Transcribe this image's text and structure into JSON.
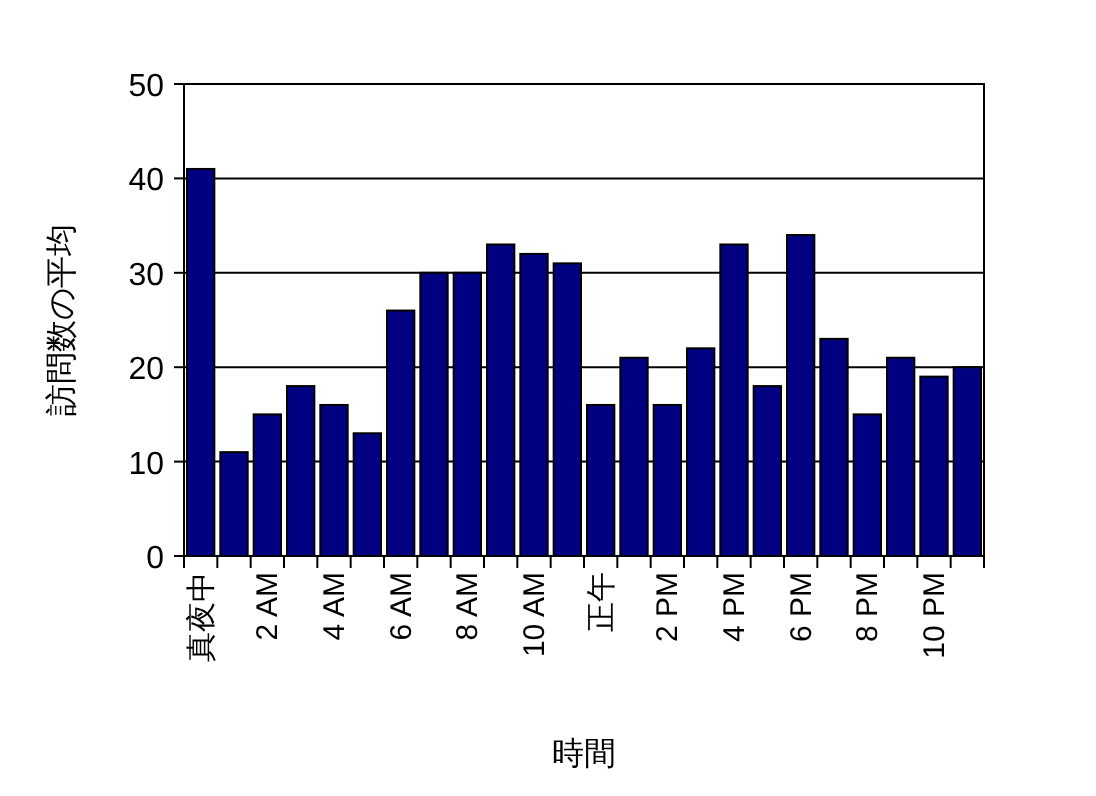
{
  "chart_data": {
    "type": "bar",
    "xlabel": "時間",
    "ylabel": "訪問数の平均",
    "categories": [
      "真夜中",
      null,
      "2 AM",
      null,
      "4 AM",
      null,
      "6 AM",
      null,
      "8 AM",
      null,
      "10 AM",
      null,
      "正午",
      null,
      "2 PM",
      null,
      "4 PM",
      null,
      "6 PM",
      null,
      "8 PM",
      null,
      "10 PM",
      null
    ],
    "values": [
      41,
      11,
      15,
      18,
      16,
      13,
      26,
      30,
      30,
      33,
      32,
      31,
      16,
      21,
      16,
      22,
      33,
      18,
      34,
      23,
      15,
      21,
      19,
      20
    ],
    "color": "#000080",
    "ylim": [
      0,
      50
    ],
    "yticks": [
      0,
      10,
      20,
      30,
      40,
      50
    ],
    "grid": "y"
  }
}
